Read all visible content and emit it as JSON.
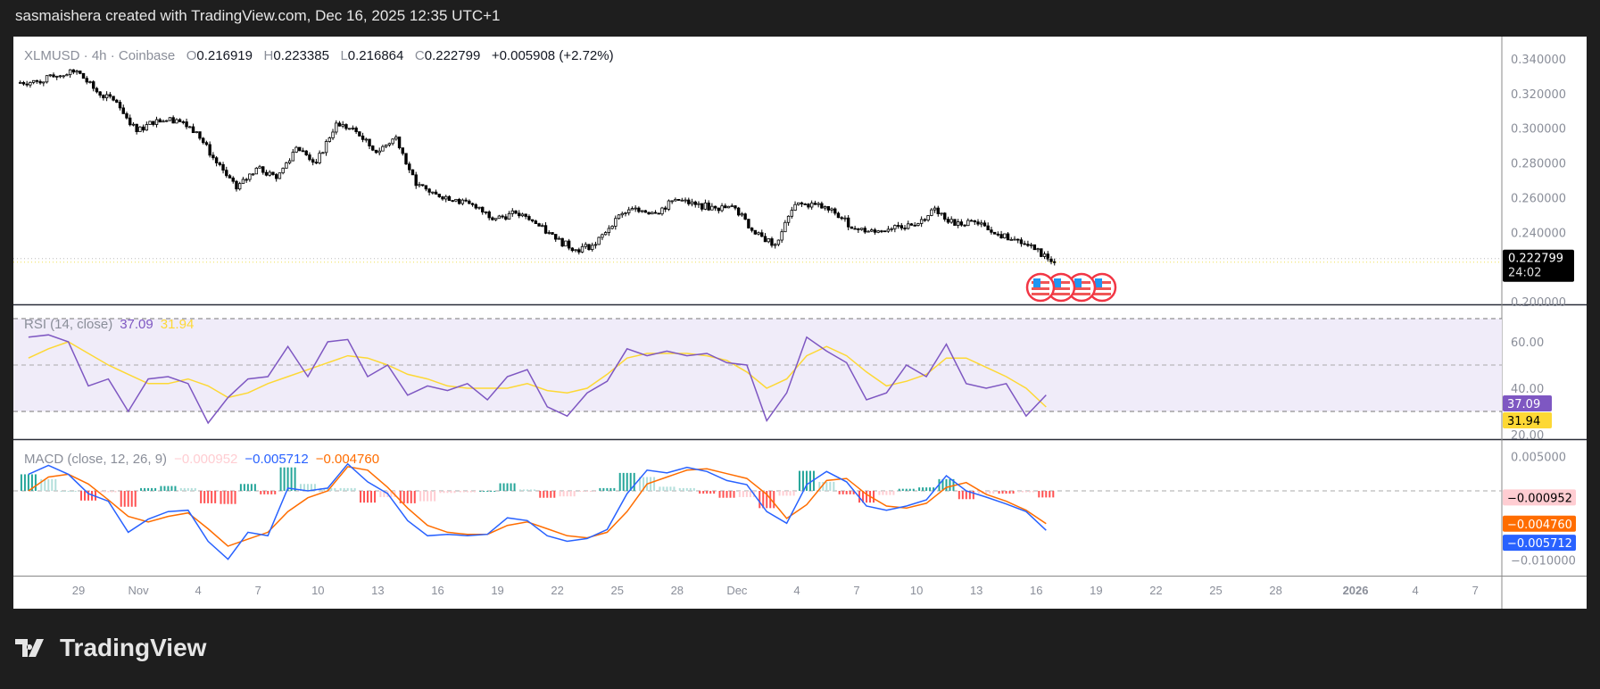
{
  "header": {
    "attribution": "sasmaishera created with TradingView.com, Dec 16, 2025 12:35 UTC+1"
  },
  "legend": {
    "symbol": "XLMUSD · 4h · Coinbase",
    "o_label": "O",
    "open": "0.216919",
    "h_label": "H",
    "high": "0.223385",
    "l_label": "L",
    "low": "0.216864",
    "c_label": "C",
    "close": "0.222799",
    "change": "+0.005908 (+2.72%)"
  },
  "rsi_legend": {
    "name": "RSI (14, close)",
    "value": "37.09",
    "ma_value": "31.94"
  },
  "macd_legend": {
    "name": "MACD (close, 12, 26, 9)",
    "hist_value": "−0.000952",
    "macd_value": "−0.005712",
    "signal_value": "−0.004760"
  },
  "price_badge": {
    "price": "0.222799",
    "countdown": "24:02"
  },
  "badges": {
    "rsi": "37.09",
    "rsi_ma": "31.94",
    "hist": "−0.000952",
    "signal": "−0.004760",
    "macd": "−0.005712"
  },
  "logo": {
    "text": "TradingView"
  },
  "colors": {
    "up_body": "#ffffff",
    "down_body": "#000000",
    "rsi": "#7e57c2",
    "rsi_ma": "#fdd835",
    "rsi_band": "#f0ecf9",
    "macd": "#2962ff",
    "signal": "#ff6d00",
    "hist_up_strong": "#26a69a",
    "hist_up_weak": "#b2dfdb",
    "hist_down_strong": "#ff5252",
    "hist_down_weak": "#ffcdd2",
    "last_price_line": "#f0e050"
  },
  "events": {
    "icon": "us-flag-icon",
    "count": 4
  },
  "chart_data": [
    {
      "type": "candlestick",
      "title": "XLMUSD · 4h · Coinbase",
      "x": [
        "2025-10-26",
        "2025-10-27",
        "2025-10-28",
        "2025-10-29",
        "2025-10-30",
        "2025-10-31",
        "2025-11-01",
        "2025-11-02",
        "2025-11-03",
        "2025-11-04",
        "2025-11-05",
        "2025-11-06",
        "2025-11-07",
        "2025-11-08",
        "2025-11-09",
        "2025-11-10",
        "2025-11-11",
        "2025-11-12",
        "2025-11-13",
        "2025-11-14",
        "2025-11-15",
        "2025-11-16",
        "2025-11-17",
        "2025-11-18",
        "2025-11-19",
        "2025-11-20",
        "2025-11-21",
        "2025-11-22",
        "2025-11-23",
        "2025-11-24",
        "2025-11-25",
        "2025-11-26",
        "2025-11-27",
        "2025-11-28",
        "2025-11-29",
        "2025-11-30",
        "2025-12-01",
        "2025-12-02",
        "2025-12-03",
        "2025-12-04",
        "2025-12-05",
        "2025-12-06",
        "2025-12-07",
        "2025-12-08",
        "2025-12-09",
        "2025-12-10",
        "2025-12-11",
        "2025-12-12",
        "2025-12-13",
        "2025-12-14",
        "2025-12-15",
        "2025-12-16"
      ],
      "close": [
        0.327,
        0.33,
        0.333,
        0.321,
        0.315,
        0.298,
        0.305,
        0.305,
        0.298,
        0.28,
        0.265,
        0.277,
        0.271,
        0.289,
        0.28,
        0.303,
        0.298,
        0.286,
        0.295,
        0.267,
        0.262,
        0.259,
        0.254,
        0.248,
        0.251,
        0.245,
        0.236,
        0.23,
        0.233,
        0.248,
        0.254,
        0.251,
        0.259,
        0.256,
        0.254,
        0.254,
        0.239,
        0.233,
        0.256,
        0.256,
        0.251,
        0.242,
        0.24,
        0.244,
        0.244,
        0.254,
        0.244,
        0.246,
        0.239,
        0.236,
        0.23,
        0.222799
      ],
      "last_price": 0.222799,
      "ylim": [
        0.2,
        0.35
      ],
      "yticks": [
        "0.340000",
        "0.320000",
        "0.300000",
        "0.280000",
        "0.260000",
        "0.240000",
        "0.200000"
      ],
      "xlim": [
        "2025-10-26",
        "2026-01-09"
      ],
      "xticks": [
        {
          "label": "29",
          "date": "2025-10-29"
        },
        {
          "label": "Nov",
          "date": "2025-11-01"
        },
        {
          "label": "4",
          "date": "2025-11-04"
        },
        {
          "label": "7",
          "date": "2025-11-07"
        },
        {
          "label": "10",
          "date": "2025-11-10"
        },
        {
          "label": "13",
          "date": "2025-11-13"
        },
        {
          "label": "16",
          "date": "2025-11-16"
        },
        {
          "label": "19",
          "date": "2025-11-19"
        },
        {
          "label": "22",
          "date": "2025-11-22"
        },
        {
          "label": "25",
          "date": "2025-11-25"
        },
        {
          "label": "28",
          "date": "2025-11-28"
        },
        {
          "label": "Dec",
          "date": "2025-12-01"
        },
        {
          "label": "4",
          "date": "2025-12-04"
        },
        {
          "label": "7",
          "date": "2025-12-07"
        },
        {
          "label": "10",
          "date": "2025-12-10"
        },
        {
          "label": "13",
          "date": "2025-12-13"
        },
        {
          "label": "16",
          "date": "2025-12-16"
        },
        {
          "label": "19",
          "date": "2025-12-19"
        },
        {
          "label": "22",
          "date": "2025-12-22"
        },
        {
          "label": "25",
          "date": "2025-12-25"
        },
        {
          "label": "28",
          "date": "2025-12-28"
        },
        {
          "label": "2026",
          "date": "2026-01-01"
        },
        {
          "label": "4",
          "date": "2026-01-04"
        },
        {
          "label": "7",
          "date": "2026-01-07"
        }
      ]
    },
    {
      "type": "line",
      "title": "RSI (14, close)",
      "series": [
        {
          "name": "RSI",
          "values": [
            62,
            63,
            60,
            41,
            44,
            30,
            44,
            45,
            42,
            25,
            36,
            44,
            45,
            58,
            45,
            60,
            61,
            45,
            50,
            37,
            41,
            39,
            42,
            35,
            45,
            48,
            32,
            28,
            38,
            43,
            57,
            54,
            56,
            54,
            55,
            51,
            50,
            26,
            38,
            62,
            56,
            51,
            35,
            38,
            50,
            45,
            59,
            42,
            40,
            42,
            28,
            37.09
          ]
        },
        {
          "name": "RSI-based MA",
          "values": [
            53,
            57,
            60,
            55,
            50,
            46,
            42,
            42,
            44,
            41,
            36,
            38,
            42,
            45,
            48,
            51,
            54,
            53,
            50,
            46,
            44,
            41,
            40,
            40,
            40,
            42,
            39,
            38,
            40,
            46,
            53,
            55,
            55,
            55,
            54,
            52,
            47,
            40,
            44,
            54,
            58,
            54,
            47,
            41,
            43,
            46,
            53,
            53,
            49,
            45,
            40,
            31.94
          ]
        }
      ],
      "bands": [
        70,
        50,
        30
      ],
      "ylim": [
        10,
        76
      ],
      "yticks": [
        "60.00",
        "40.00",
        "20.00"
      ]
    },
    {
      "type": "line+bar",
      "title": "MACD (close, 12, 26, 9)",
      "series": [
        {
          "name": "MACD",
          "values": [
            0.0024,
            0.0037,
            0.0024,
            -0.0004,
            -0.0015,
            -0.006,
            -0.0041,
            -0.003,
            -0.0028,
            -0.0073,
            -0.0099,
            -0.006,
            -0.0065,
            0.0004,
            0.0,
            0.0004,
            0.0039,
            0.0013,
            -0.0004,
            -0.0043,
            -0.0065,
            -0.0063,
            -0.0065,
            -0.0063,
            -0.0039,
            -0.0043,
            -0.0065,
            -0.0073,
            -0.0069,
            -0.0056,
            -0.0004,
            0.003,
            0.0026,
            0.0034,
            0.0028,
            0.0015,
            0.0009,
            -0.003,
            -0.0047,
            0.0009,
            0.0028,
            0.0013,
            -0.0022,
            -0.0028,
            -0.0022,
            -0.0013,
            0.0022,
            0.0,
            -0.0009,
            -0.0019,
            -0.003,
            -0.005712
          ]
        },
        {
          "name": "Signal",
          "values": [
            0.0,
            0.002,
            0.0024,
            0.001,
            -0.0013,
            -0.0037,
            -0.0045,
            -0.0037,
            -0.0032,
            -0.0055,
            -0.008,
            -0.007,
            -0.006,
            -0.003,
            -0.001,
            0.0,
            0.0035,
            0.003,
            0.0005,
            -0.0025,
            -0.005,
            -0.006,
            -0.0063,
            -0.0063,
            -0.005,
            -0.0045,
            -0.0055,
            -0.0065,
            -0.0068,
            -0.006,
            -0.003,
            0.001,
            0.002,
            0.003,
            0.0032,
            0.0025,
            0.0018,
            -0.0005,
            -0.004,
            -0.002,
            0.0015,
            0.0018,
            -0.0005,
            -0.0022,
            -0.0025,
            -0.0018,
            0.0005,
            0.0012,
            -0.0005,
            -0.0015,
            -0.0028,
            -0.00476
          ]
        }
      ],
      "ylim": [
        -0.0122,
        0.0073
      ],
      "yticks": [
        "0.005000",
        "−0.010000"
      ]
    }
  ]
}
